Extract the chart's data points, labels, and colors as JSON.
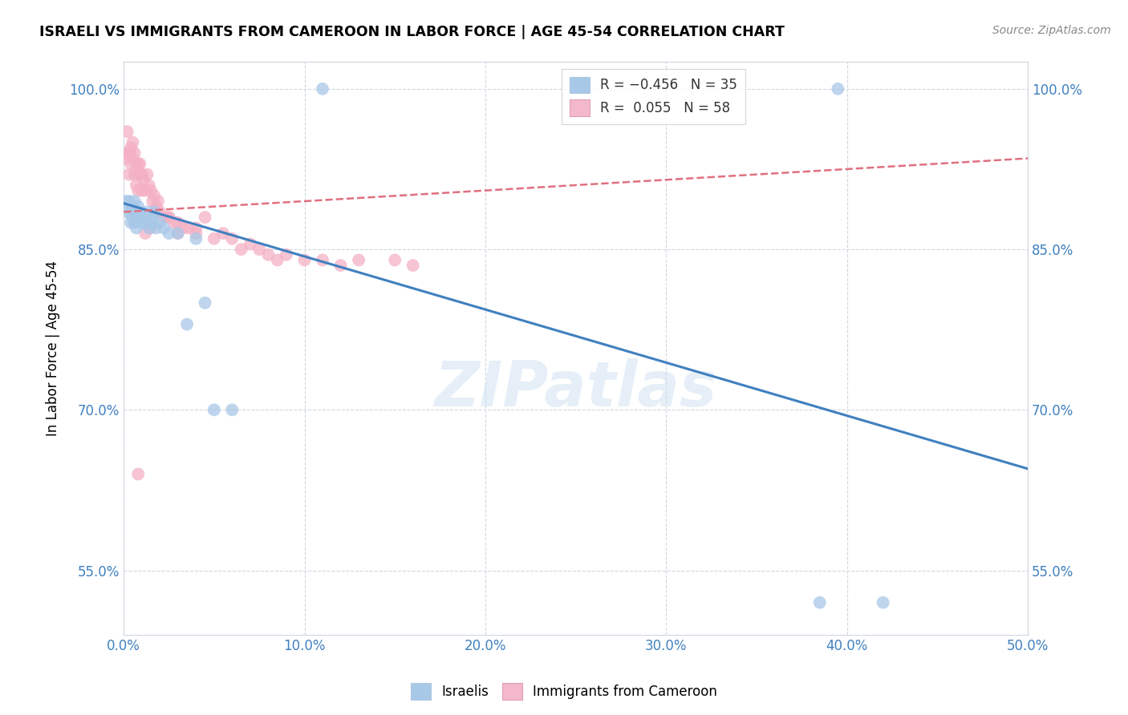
{
  "title": "ISRAELI VS IMMIGRANTS FROM CAMEROON IN LABOR FORCE | AGE 45-54 CORRELATION CHART",
  "source": "Source: ZipAtlas.com",
  "ylabel": "In Labor Force | Age 45-54",
  "xlim": [
    0.0,
    0.5
  ],
  "ylim": [
    0.49,
    1.025
  ],
  "xticks": [
    0.0,
    0.1,
    0.2,
    0.3,
    0.4,
    0.5
  ],
  "xticklabels": [
    "0.0%",
    "10.0%",
    "20.0%",
    "30.0%",
    "40.0%",
    "50.0%"
  ],
  "yticks": [
    0.55,
    0.7,
    0.85,
    1.0
  ],
  "yticklabels": [
    "55.0%",
    "70.0%",
    "85.0%",
    "100.0%"
  ],
  "legend_labels": [
    "R = −0.456   N = 35",
    "R =  0.055   N = 58"
  ],
  "legend_colors": [
    "#a8c8e8",
    "#f4b8cc"
  ],
  "watermark": "ZIPatlas",
  "israeli_color": "#a8c8e8",
  "cameroon_color": "#f4b0c4",
  "trend_israeli_color": "#4080c0",
  "trend_cameroon_color": "#e07080",
  "israeli_x": [
    0.001,
    0.002,
    0.003,
    0.004,
    0.004,
    0.005,
    0.005,
    0.006,
    0.006,
    0.007,
    0.007,
    0.008,
    0.009,
    0.01,
    0.011,
    0.012,
    0.013,
    0.014,
    0.015,
    0.016,
    0.017,
    0.018,
    0.02,
    0.022,
    0.025,
    0.03,
    0.035,
    0.04,
    0.045,
    0.05,
    0.06,
    0.11,
    0.385,
    0.42,
    0.395
  ],
  "israeli_y": [
    0.895,
    0.885,
    0.895,
    0.885,
    0.875,
    0.89,
    0.88,
    0.895,
    0.875,
    0.88,
    0.87,
    0.89,
    0.885,
    0.875,
    0.88,
    0.875,
    0.885,
    0.87,
    0.875,
    0.88,
    0.885,
    0.87,
    0.875,
    0.87,
    0.865,
    0.865,
    0.78,
    0.86,
    0.8,
    0.7,
    0.7,
    1.0,
    0.52,
    0.52,
    1.0
  ],
  "cameroon_x": [
    0.001,
    0.002,
    0.002,
    0.003,
    0.003,
    0.004,
    0.004,
    0.005,
    0.005,
    0.006,
    0.006,
    0.007,
    0.007,
    0.008,
    0.008,
    0.009,
    0.009,
    0.01,
    0.01,
    0.011,
    0.012,
    0.013,
    0.014,
    0.015,
    0.016,
    0.017,
    0.018,
    0.019,
    0.02,
    0.022,
    0.025,
    0.028,
    0.03,
    0.033,
    0.036,
    0.04,
    0.045,
    0.05,
    0.055,
    0.06,
    0.065,
    0.07,
    0.075,
    0.08,
    0.085,
    0.09,
    0.1,
    0.11,
    0.12,
    0.13,
    0.15,
    0.16,
    0.04,
    0.025,
    0.03,
    0.015,
    0.008,
    0.012
  ],
  "cameroon_y": [
    0.935,
    0.96,
    0.94,
    0.94,
    0.92,
    0.945,
    0.93,
    0.95,
    0.935,
    0.94,
    0.92,
    0.93,
    0.91,
    0.93,
    0.905,
    0.93,
    0.92,
    0.92,
    0.905,
    0.915,
    0.905,
    0.92,
    0.91,
    0.905,
    0.895,
    0.9,
    0.89,
    0.895,
    0.885,
    0.88,
    0.88,
    0.875,
    0.875,
    0.87,
    0.87,
    0.865,
    0.88,
    0.86,
    0.865,
    0.86,
    0.85,
    0.855,
    0.85,
    0.845,
    0.84,
    0.845,
    0.84,
    0.84,
    0.835,
    0.84,
    0.84,
    0.835,
    0.87,
    0.88,
    0.865,
    0.87,
    0.64,
    0.865
  ],
  "israeli_trend_x0": 0.0,
  "israeli_trend_y0": 0.893,
  "israeli_trend_x1": 0.5,
  "israeli_trend_y1": 0.645,
  "cameroon_trend_x0": 0.0,
  "cameroon_trend_y0": 0.885,
  "cameroon_trend_x1": 0.5,
  "cameroon_trend_y1": 0.935
}
